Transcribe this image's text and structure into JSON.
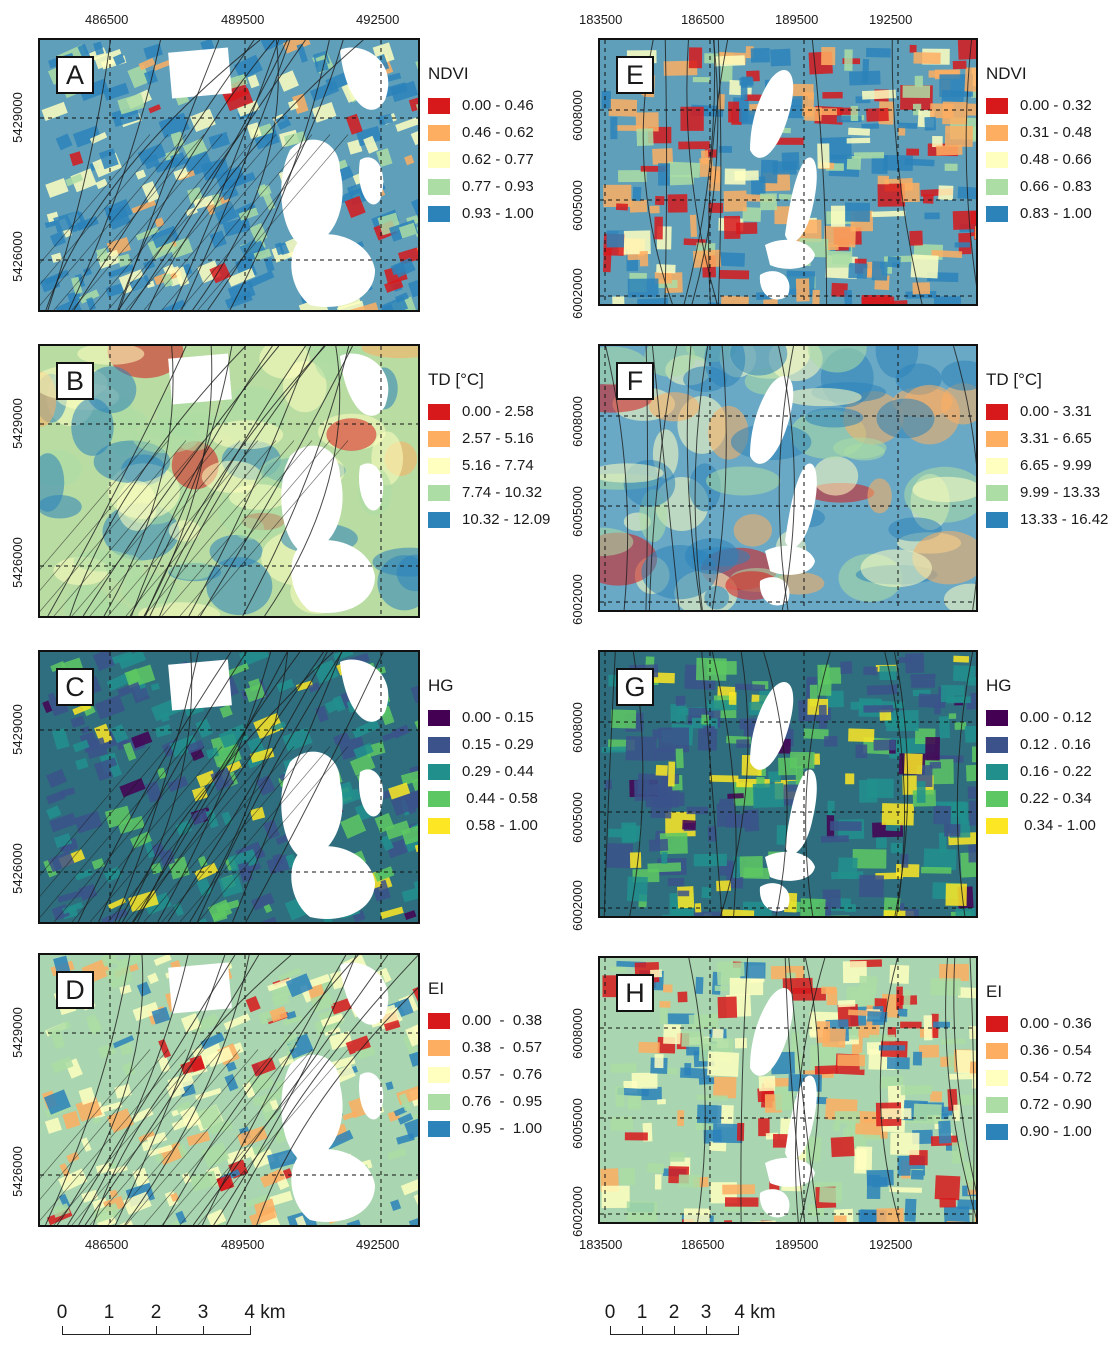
{
  "left_column": {
    "top_xticks": [
      "486500",
      "489500",
      "492500"
    ],
    "bottom_xticks": [
      "486500",
      "489500",
      "492500"
    ],
    "yticks": [
      "5429000",
      "5426000"
    ],
    "scalebar": {
      "labels": [
        "0",
        "1",
        "2",
        "3",
        "4 km"
      ]
    }
  },
  "right_column": {
    "top_xticks": [
      "183500",
      "186500",
      "189500",
      "192500"
    ],
    "bottom_xticks": [
      "183500",
      "186500",
      "189500",
      "192500"
    ],
    "yticks": [
      "6008000",
      "6005000",
      "6002000"
    ],
    "scalebar": {
      "labels": [
        "0",
        "1",
        "2",
        "3",
        "4 km"
      ]
    }
  },
  "panels": [
    {
      "letter": "A",
      "legend_title": "NDVI",
      "palette": "rdylbu",
      "classes": [
        "0.00 - 0.46",
        "0.46 - 0.62",
        "0.62 - 0.77",
        "0.77 - 0.93",
        "0.93 - 1.00"
      ]
    },
    {
      "letter": "B",
      "legend_title": "TD [°C]",
      "palette": "rdylbu",
      "classes": [
        "0.00 - 2.58",
        "2.57 - 5.16",
        "5.16 - 7.74",
        "7.74 - 10.32",
        "10.32 - 12.09"
      ]
    },
    {
      "letter": "C",
      "legend_title": "HG",
      "palette": "viridis",
      "classes": [
        "0.00 - 0.15",
        "0.15 - 0.29",
        "0.29 - 0.44",
        " 0.44 - 0.58",
        " 0.58 - 1.00"
      ]
    },
    {
      "letter": "D",
      "legend_title": "EI",
      "palette": "rdylbu",
      "classes": [
        "0.00  -  0.38",
        "0.38  -  0.57",
        "0.57  -  0.76",
        "0.76  -  0.95",
        "0.95  -  1.00"
      ]
    },
    {
      "letter": "E",
      "legend_title": "NDVI",
      "palette": "rdylbu",
      "classes": [
        "0.00 - 0.32",
        "0.31 - 0.48",
        "0.48 - 0.66",
        "0.66 - 0.83",
        "0.83 - 1.00"
      ]
    },
    {
      "letter": "F",
      "legend_title": "TD [°C]",
      "palette": "rdylbu",
      "classes": [
        "0.00 - 3.31",
        "3.31 - 6.65",
        "6.65 - 9.99",
        "9.99 - 13.33",
        "13.33 - 16.42"
      ]
    },
    {
      "letter": "G",
      "legend_title": "HG",
      "palette": "viridis",
      "classes": [
        "0.00 - 0.12",
        "0.12 . 0.16",
        "0.16 - 0.22",
        "0.22 - 0.34",
        " 0.34 - 1.00"
      ]
    },
    {
      "letter": "H",
      "legend_title": "EI",
      "palette": "rdylbu",
      "classes": [
        "0.00 - 0.36",
        "0.36 - 0.54",
        "0.54 - 0.72",
        "0.72 - 0.90",
        "0.90 - 1.00"
      ]
    }
  ],
  "colors": {
    "rdylbu": [
      "#d7191c",
      "#fdae61",
      "#ffffbf",
      "#abdda4",
      "#2b83ba"
    ],
    "viridis": [
      "#440154",
      "#3b528b",
      "#21908d",
      "#5dc863",
      "#fde725"
    ]
  }
}
